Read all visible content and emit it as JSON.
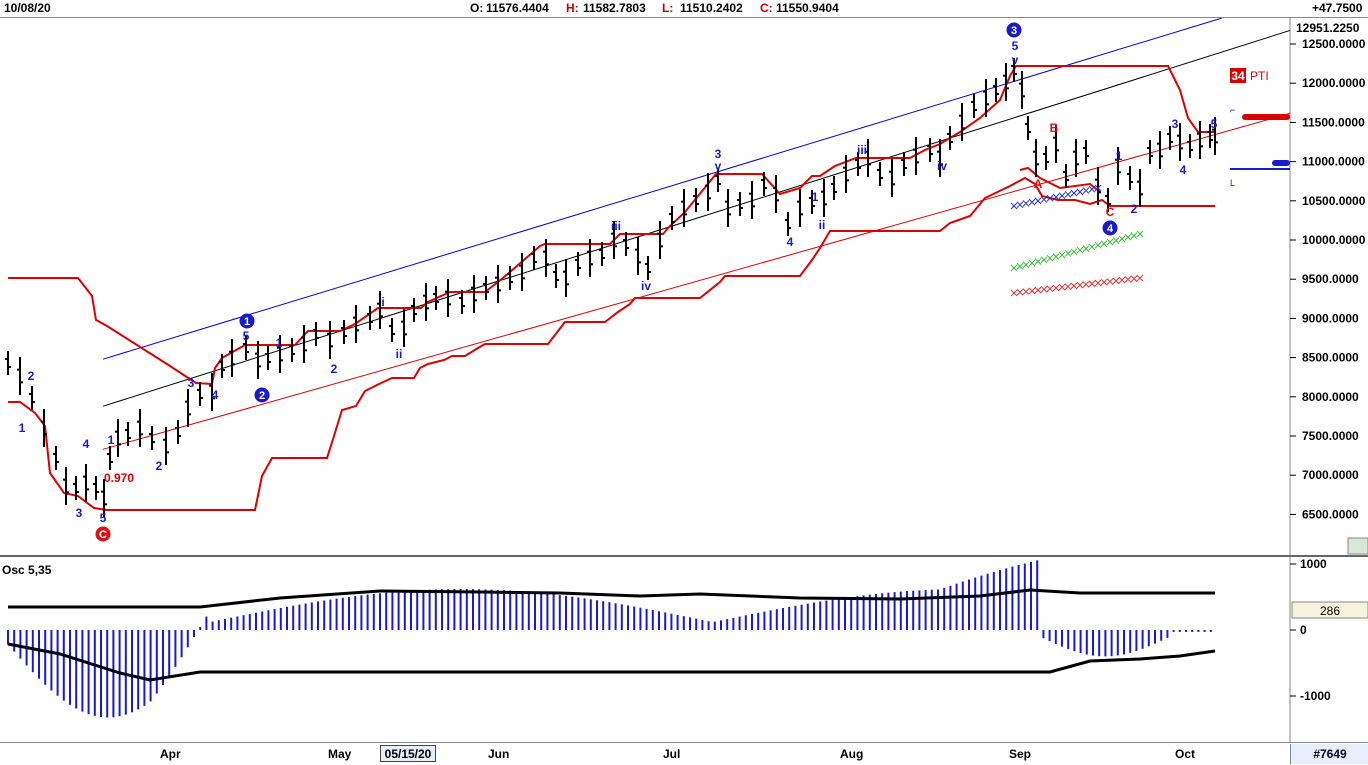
{
  "header": {
    "date": "10/08/20",
    "open_label": "O:",
    "open": "11576.4404",
    "high_label": "H:",
    "high": "11582.7803",
    "low_label": "L:",
    "low": "11510.2402",
    "close_label": "C:",
    "close": "11550.9404",
    "change": "+47.7500"
  },
  "price_axis": {
    "top_value": "12951.2250",
    "ticks": [
      "12500.0000",
      "12000.0000",
      "11500.0000",
      "11000.0000",
      "10500.0000",
      "10000.0000",
      "9500.0000",
      "9000.0000",
      "8500.0000",
      "8000.0000",
      "7500.0000",
      "7000.0000",
      "6500.0000"
    ]
  },
  "indicator": {
    "badge": "34",
    "label": "PTI",
    "value_label": "0.970"
  },
  "osc": {
    "title": "Osc 5,35",
    "value": "286",
    "ticks": [
      "1000",
      "0",
      "-1000"
    ]
  },
  "time_axis": {
    "months": [
      "Apr",
      "May",
      "Jun",
      "Jul",
      "Aug",
      "Sep",
      "Oct"
    ],
    "selected_date": "05/15/20"
  },
  "footer": {
    "bar_id": "#7649"
  },
  "wave_labels": {
    "circled": [
      "1",
      "2",
      "3",
      "4",
      "C"
    ],
    "minor": [
      "1",
      "2",
      "3",
      "4",
      "5",
      "i",
      "ii",
      "iii",
      "iv",
      "v",
      "A",
      "B",
      "C"
    ]
  },
  "colors": {
    "price_bars": "#000000",
    "channel_upper": "#0000cc",
    "channel_mid": "#000000",
    "channel_lower": "#dd0000",
    "envelope": "#dd0000",
    "osc_hist": "#1a1acc",
    "osc_line": "#000000",
    "wave_blue": "#1a1acc",
    "wave_red": "#dd1111"
  },
  "chart_data": {
    "type": "bar",
    "title": "",
    "xlabel": "",
    "ylabel": "",
    "ylim": [
      6250,
      12951.225
    ],
    "x_range": [
      "2020-03-20",
      "2020-10-08"
    ],
    "ohlc_samples": [
      {
        "d": "2020-03-23",
        "c": 6900
      },
      {
        "d": "2020-04-01",
        "c": 7500
      },
      {
        "d": "2020-04-15",
        "c": 8600
      },
      {
        "d": "2020-05-01",
        "c": 8800
      },
      {
        "d": "2020-05-15",
        "c": 9000
      },
      {
        "d": "2020-06-01",
        "c": 9500
      },
      {
        "d": "2020-06-15",
        "c": 9900
      },
      {
        "d": "2020-07-01",
        "c": 10300
      },
      {
        "d": "2020-07-15",
        "c": 10700
      },
      {
        "d": "2020-08-03",
        "c": 11000
      },
      {
        "d": "2020-08-17",
        "c": 11300
      },
      {
        "d": "2020-09-02",
        "c": 12300
      },
      {
        "d": "2020-09-08",
        "c": 11000
      },
      {
        "d": "2020-09-23",
        "c": 10700
      },
      {
        "d": "2020-10-08",
        "c": 11550.94
      }
    ],
    "oscillator": {
      "name": "Osc 5,35",
      "range": [
        -1400,
        1000
      ],
      "last_value": 286
    }
  }
}
